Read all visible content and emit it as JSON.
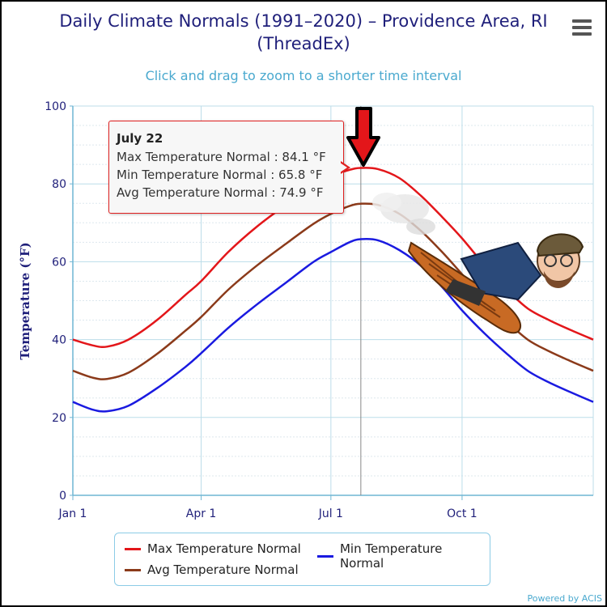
{
  "title": "Daily Climate Normals (1991–2020) – Providence Area, RI (ThreadEx)",
  "subtitle": "Click and drag to zoom to a shorter time interval",
  "menu_icon": "hamburger-menu-icon",
  "credits": "Powered by ACIS",
  "tooltip": {
    "date": "July 22",
    "max_label": "Max Temperature Normal : 84.1 °F",
    "min_label": "Min Temperature Normal : 65.8 °F",
    "avg_label": "Avg Temperature Normal : 74.9 °F"
  },
  "legend": {
    "max": "Max Temperature Normal",
    "min": "Min Temperature Normal",
    "avg": "Avg Temperature Normal"
  },
  "annotations": {
    "arrow": "red-down-arrow-icon",
    "sled_rider": "cartoon-sled-rider-image"
  },
  "chart_data": {
    "type": "line",
    "ylabel": "Temperature (°F)",
    "ylim": [
      0,
      100
    ],
    "yticks": [
      0,
      20,
      40,
      60,
      80,
      100
    ],
    "xticks": [
      {
        "label": "Jan 1",
        "day": 1
      },
      {
        "label": "Apr 1",
        "day": 91
      },
      {
        "label": "Jul 1",
        "day": 182
      },
      {
        "label": "Oct 1",
        "day": 274
      }
    ],
    "xlim_days": [
      1,
      366
    ],
    "grid": true,
    "highlight_day": 203,
    "x": [
      1,
      15,
      25,
      40,
      60,
      80,
      91,
      110,
      130,
      150,
      170,
      182,
      195,
      203,
      215,
      230,
      245,
      260,
      274,
      290,
      305,
      320,
      335,
      350,
      366
    ],
    "series": [
      {
        "name": "Max Temperature Normal",
        "color": "#e3161a",
        "values": [
          40,
          38.5,
          38.2,
          40,
          45,
          51.5,
          55,
          62.5,
          69,
          74.5,
          79.5,
          82,
          83.6,
          84.1,
          83.8,
          81.5,
          77,
          71.5,
          66,
          59,
          53,
          48,
          45,
          42.5,
          40
        ]
      },
      {
        "name": "Min Temperature Normal",
        "color": "#1a1ae0",
        "values": [
          24,
          22,
          21.6,
          23,
          27.5,
          33,
          36.5,
          43,
          49,
          54.5,
          60,
          62.5,
          65,
          65.8,
          65.5,
          63,
          59,
          53.5,
          47.5,
          41.5,
          36.5,
          32,
          29,
          26.5,
          24
        ]
      },
      {
        "name": "Avg Temperature Normal",
        "color": "#8b3a1a",
        "values": [
          32,
          30.2,
          29.9,
          31.5,
          36.3,
          42.3,
          45.8,
          52.8,
          59,
          64.5,
          69.8,
          72.3,
          74.3,
          74.9,
          74.6,
          72.3,
          68,
          62.5,
          56.8,
          50.3,
          44.8,
          40,
          37,
          34.5,
          32
        ]
      }
    ]
  }
}
